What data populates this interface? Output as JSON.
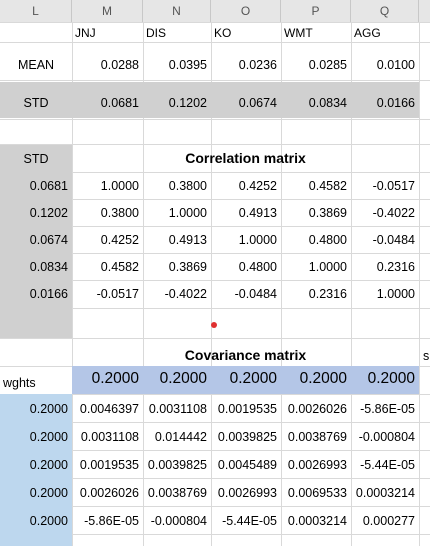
{
  "columns": [
    "L",
    "M",
    "N",
    "O",
    "P",
    "Q"
  ],
  "tickers": [
    "JNJ",
    "DIS",
    "KO",
    "WMT",
    "AGG"
  ],
  "mean": {
    "label": "MEAN",
    "values": [
      "0.0288",
      "0.0395",
      "0.0236",
      "0.0285",
      "0.0100"
    ]
  },
  "std": {
    "label": "STD",
    "values": [
      "0.0681",
      "0.1202",
      "0.0674",
      "0.0834",
      "0.0166"
    ]
  },
  "corr": {
    "std_label": "STD",
    "title": "Correlation matrix",
    "std_values": [
      "0.0681",
      "0.1202",
      "0.0674",
      "0.0834",
      "0.0166"
    ],
    "rows": [
      [
        "1.0000",
        "0.3800",
        "0.4252",
        "0.4582",
        "-0.0517"
      ],
      [
        "0.3800",
        "1.0000",
        "0.4913",
        "0.3869",
        "-0.4022"
      ],
      [
        "0.4252",
        "0.4913",
        "1.0000",
        "0.4800",
        "-0.0484"
      ],
      [
        "0.4582",
        "0.3869",
        "0.4800",
        "1.0000",
        "0.2316"
      ],
      [
        "-0.0517",
        "-0.4022",
        "-0.0484",
        "0.2316",
        "1.0000"
      ]
    ]
  },
  "cov": {
    "title": "Covariance matrix",
    "overflow_text": "su",
    "wghts_label": "wghts",
    "weights": [
      "0.2000",
      "0.2000",
      "0.2000",
      "0.2000",
      "0.2000"
    ],
    "row_weights": [
      "0.2000",
      "0.2000",
      "0.2000",
      "0.2000",
      "0.2000"
    ],
    "rows": [
      [
        "0.0046397",
        "0.0031108",
        "0.0019535",
        "0.0026026",
        "-5.86E-05"
      ],
      [
        "0.0031108",
        "0.014442",
        "0.0039825",
        "0.0038769",
        "-0.000804"
      ],
      [
        "0.0019535",
        "0.0039825",
        "0.0045489",
        "0.0026993",
        "-5.44E-05"
      ],
      [
        "0.0026026",
        "0.0038769",
        "0.0026993",
        "0.0069533",
        "0.0003214"
      ],
      [
        "-5.86E-05",
        "-0.000804",
        "-5.44E-05",
        "0.0003214",
        "0.000277"
      ]
    ]
  },
  "colors": {
    "gray": "#d0d0d0",
    "blue_light": "#bdd7ee",
    "blue_header": "#b4c6e7",
    "marker": "#e03030"
  }
}
